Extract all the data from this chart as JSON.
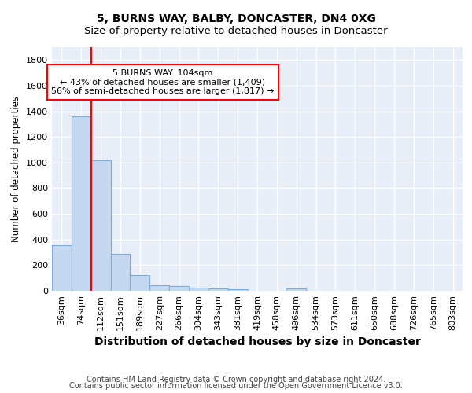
{
  "title1": "5, BURNS WAY, BALBY, DONCASTER, DN4 0XG",
  "title2": "Size of property relative to detached houses in Doncaster",
  "xlabel": "Distribution of detached houses by size in Doncaster",
  "ylabel": "Number of detached properties",
  "footer1": "Contains HM Land Registry data © Crown copyright and database right 2024.",
  "footer2": "Contains public sector information licensed under the Open Government Licence v3.0.",
  "bin_labels": [
    "36sqm",
    "74sqm",
    "112sqm",
    "151sqm",
    "189sqm",
    "227sqm",
    "266sqm",
    "304sqm",
    "343sqm",
    "381sqm",
    "419sqm",
    "458sqm",
    "496sqm",
    "534sqm",
    "573sqm",
    "611sqm",
    "650sqm",
    "688sqm",
    "726sqm",
    "765sqm",
    "803sqm"
  ],
  "bar_values": [
    355,
    1360,
    1020,
    290,
    125,
    40,
    35,
    25,
    20,
    15,
    0,
    0,
    20,
    0,
    0,
    0,
    0,
    0,
    0,
    0,
    0
  ],
  "bar_color": "#c5d8f0",
  "bar_edge_color": "#7aaddd",
  "property_line_bin": 2,
  "property_line_color": "red",
  "annotation_text": "5 BURNS WAY: 104sqm\n← 43% of detached houses are smaller (1,409)\n56% of semi-detached houses are larger (1,817) →",
  "ylim": [
    0,
    1900
  ],
  "yticks": [
    0,
    200,
    400,
    600,
    800,
    1000,
    1200,
    1400,
    1600,
    1800
  ],
  "background_color": "#e8eef8",
  "grid_color": "white",
  "title1_fontsize": 10,
  "title2_fontsize": 9.5,
  "xlabel_fontsize": 10,
  "ylabel_fontsize": 8.5,
  "tick_fontsize": 8,
  "annotation_fontsize": 8,
  "footer_fontsize": 7
}
